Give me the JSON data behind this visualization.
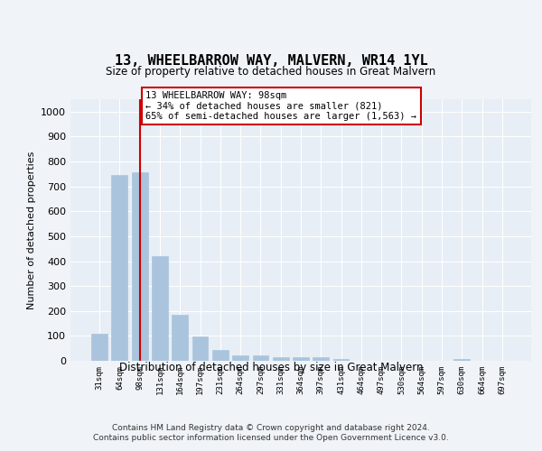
{
  "title": "13, WHEELBARROW WAY, MALVERN, WR14 1YL",
  "subtitle": "Size of property relative to detached houses in Great Malvern",
  "xlabel": "Distribution of detached houses by size in Great Malvern",
  "ylabel": "Number of detached properties",
  "categories": [
    "31sqm",
    "64sqm",
    "98sqm",
    "131sqm",
    "164sqm",
    "197sqm",
    "231sqm",
    "264sqm",
    "297sqm",
    "331sqm",
    "364sqm",
    "397sqm",
    "431sqm",
    "464sqm",
    "497sqm",
    "530sqm",
    "564sqm",
    "597sqm",
    "630sqm",
    "664sqm",
    "697sqm"
  ],
  "values": [
    110,
    745,
    755,
    420,
    185,
    98,
    45,
    22,
    22,
    15,
    13,
    13,
    8,
    0,
    0,
    0,
    0,
    0,
    8,
    0,
    0
  ],
  "bar_color": "#aac4dd",
  "highlight_index": 2,
  "highlight_line_color": "#cc0000",
  "annotation_text": "13 WHEELBARROW WAY: 98sqm\n← 34% of detached houses are smaller (821)\n65% of semi-detached houses are larger (1,563) →",
  "annotation_box_color": "#cc0000",
  "footer": "Contains HM Land Registry data © Crown copyright and database right 2024.\nContains public sector information licensed under the Open Government Licence v3.0.",
  "ylim": [
    0,
    1050
  ],
  "yticks": [
    0,
    100,
    200,
    300,
    400,
    500,
    600,
    700,
    800,
    900,
    1000
  ],
  "background_color": "#f0f4f8",
  "plot_background_color": "#e8eef5"
}
